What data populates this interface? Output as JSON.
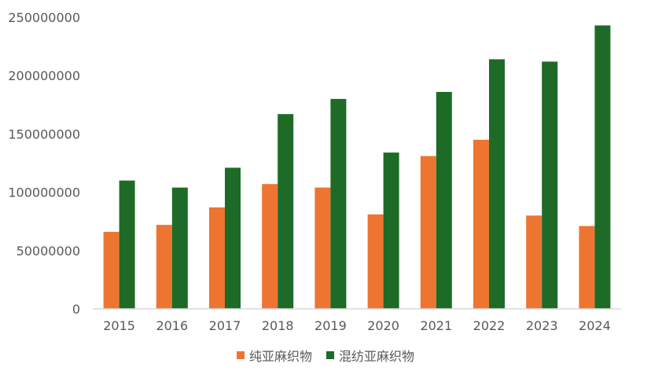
{
  "chart_data": {
    "type": "bar",
    "categories": [
      "2015",
      "2016",
      "2017",
      "2018",
      "2019",
      "2020",
      "2021",
      "2022",
      "2023",
      "2024"
    ],
    "series": [
      {
        "name": "纯亚麻织物",
        "color": "#ED7531",
        "values": [
          66000000,
          72000000,
          87000000,
          107000000,
          104000000,
          81000000,
          131000000,
          145000000,
          80000000,
          71000000
        ]
      },
      {
        "name": "混纺亚麻织物",
        "color": "#1D6B27",
        "values": [
          110000000,
          104000000,
          121000000,
          167000000,
          180000000,
          134000000,
          186000000,
          214000000,
          212000000,
          243000000
        ]
      }
    ],
    "yticks": [
      "0",
      "50000000",
      "100000000",
      "150000000",
      "200000000",
      "250000000"
    ],
    "ylim": [
      0,
      250000000
    ],
    "grid": false,
    "legend": "bottom"
  }
}
